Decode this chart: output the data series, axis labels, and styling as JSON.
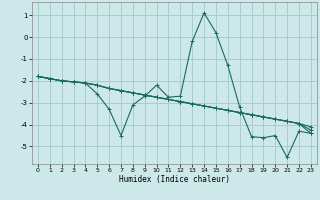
{
  "title": "",
  "xlabel": "Humidex (Indice chaleur)",
  "background_color": "#cce8e8",
  "grid_color": "#aacccc",
  "line_color": "#1a6b5a",
  "xlim": [
    -0.5,
    23.5
  ],
  "ylim": [
    -5.8,
    1.6
  ],
  "yticks": [
    -5,
    -4,
    -3,
    -2,
    -1,
    0,
    1
  ],
  "xticks": [
    0,
    1,
    2,
    3,
    4,
    5,
    6,
    7,
    8,
    9,
    10,
    11,
    12,
    13,
    14,
    15,
    16,
    17,
    18,
    19,
    20,
    21,
    22,
    23
  ],
  "x": [
    0,
    1,
    2,
    3,
    4,
    5,
    6,
    7,
    8,
    9,
    10,
    11,
    12,
    13,
    14,
    15,
    16,
    17,
    18,
    19,
    20,
    21,
    22,
    23
  ],
  "series": [
    [
      -1.8,
      -1.9,
      -2.0,
      -2.05,
      -2.1,
      -2.6,
      -3.3,
      -4.5,
      -3.1,
      -2.7,
      -2.2,
      -2.75,
      -2.7,
      -0.2,
      1.1,
      0.2,
      -1.3,
      -3.2,
      -4.55,
      -4.6,
      -4.5,
      -5.5,
      -4.3,
      -4.4
    ],
    [
      -1.8,
      -1.9,
      -2.0,
      -2.05,
      -2.1,
      -2.2,
      -2.35,
      -2.45,
      -2.55,
      -2.65,
      -2.75,
      -2.85,
      -2.95,
      -3.05,
      -3.15,
      -3.25,
      -3.35,
      -3.45,
      -3.55,
      -3.65,
      -3.75,
      -3.85,
      -3.95,
      -4.1
    ],
    [
      -1.8,
      -1.9,
      -2.0,
      -2.05,
      -2.1,
      -2.2,
      -2.35,
      -2.45,
      -2.55,
      -2.65,
      -2.75,
      -2.85,
      -2.95,
      -3.05,
      -3.15,
      -3.25,
      -3.35,
      -3.45,
      -3.55,
      -3.65,
      -3.75,
      -3.85,
      -3.95,
      -4.4
    ],
    [
      -1.8,
      -1.9,
      -2.0,
      -2.05,
      -2.1,
      -2.2,
      -2.35,
      -2.45,
      -2.55,
      -2.65,
      -2.75,
      -2.85,
      -2.95,
      -3.05,
      -3.15,
      -3.25,
      -3.35,
      -3.45,
      -3.55,
      -3.65,
      -3.75,
      -3.85,
      -3.95,
      -4.25
    ]
  ]
}
